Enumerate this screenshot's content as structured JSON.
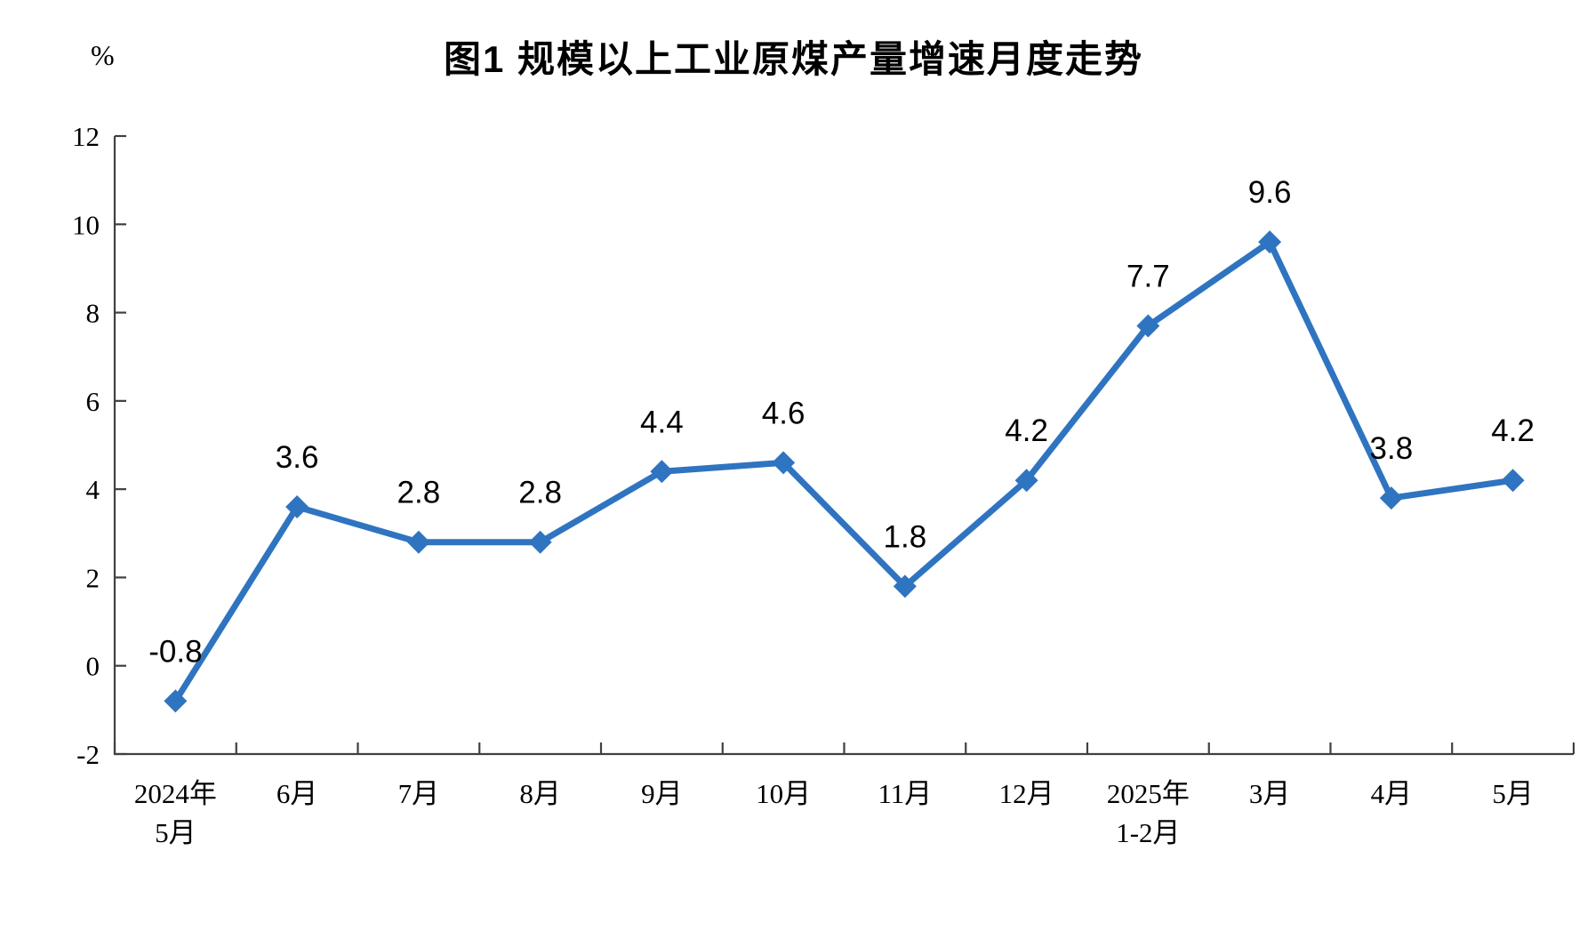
{
  "page": {
    "background": "#ffffff"
  },
  "chart_data": {
    "type": "line",
    "title": "图1 规模以上工业原煤产量增速月度走势",
    "ylabel": "%",
    "xlabel": "",
    "categories": [
      "2024年5月",
      "6月",
      "7月",
      "8月",
      "9月",
      "10月",
      "11月",
      "12月",
      "2025年1-2月",
      "3月",
      "4月",
      "5月"
    ],
    "categories_lines": [
      [
        "2024年",
        "5月"
      ],
      [
        "6月"
      ],
      [
        "7月"
      ],
      [
        "8月"
      ],
      [
        "9月"
      ],
      [
        "10月"
      ],
      [
        "11月"
      ],
      [
        "12月"
      ],
      [
        "2025年",
        "1-2月"
      ],
      [
        "3月"
      ],
      [
        "4月"
      ],
      [
        "5月"
      ]
    ],
    "values": [
      -0.8,
      3.6,
      2.8,
      2.8,
      4.4,
      4.6,
      1.8,
      4.2,
      7.7,
      9.6,
      3.8,
      4.2
    ],
    "data_labels": [
      "-0.8",
      "3.6",
      "2.8",
      "2.8",
      "4.4",
      "4.6",
      "1.8",
      "4.2",
      "7.7",
      "9.6",
      "3.8",
      "4.2"
    ],
    "ylim": [
      -2,
      12
    ],
    "ytick_step": 2,
    "yticks": [
      12,
      10,
      8,
      6,
      4,
      2,
      0,
      -2
    ],
    "grid": false,
    "legend": "none",
    "line_color": "#2F74C0",
    "marker": "diamond",
    "axis_color": "#404040",
    "label_color": "#000000"
  }
}
